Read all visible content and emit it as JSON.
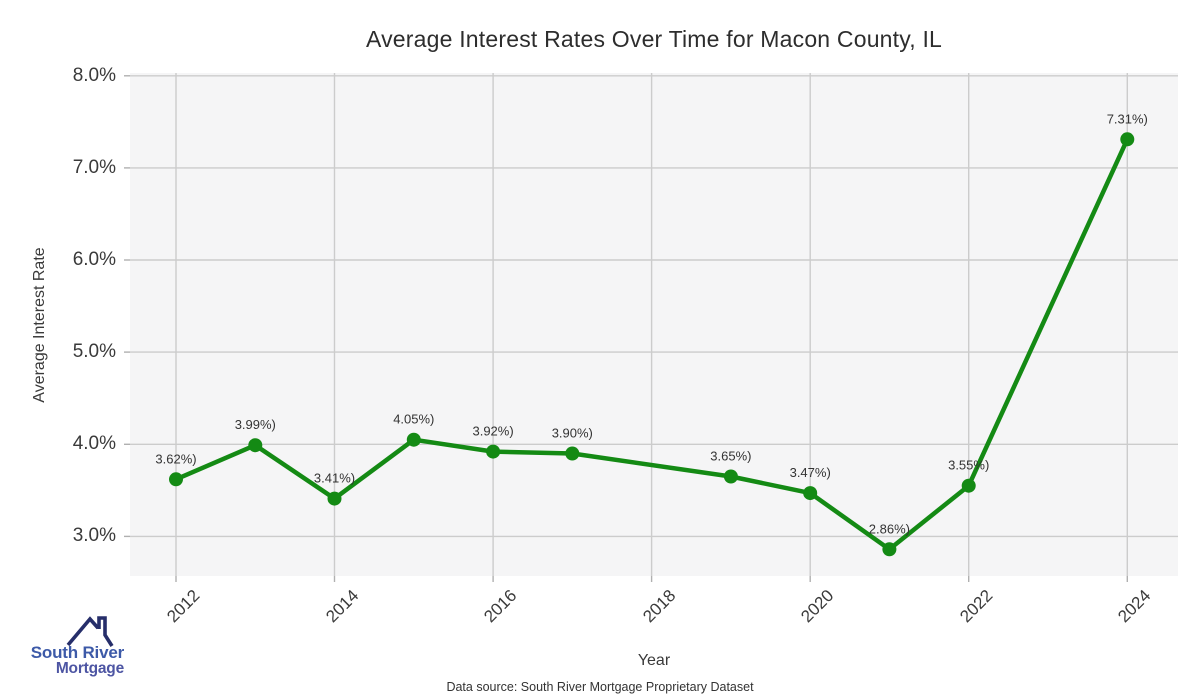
{
  "chart_data": {
    "type": "line",
    "title": "Average Interest Rates Over Time for Macon County, IL",
    "xlabel": "Year",
    "ylabel": "Average Interest Rate",
    "x": [
      2012,
      2013,
      2014,
      2015,
      2016,
      2017,
      2019,
      2020,
      2021,
      2022,
      2024
    ],
    "values": [
      3.62,
      3.99,
      3.41,
      4.05,
      3.92,
      3.9,
      3.65,
      3.47,
      2.86,
      3.55,
      7.31
    ],
    "point_labels": [
      "3.62%)",
      "3.99%)",
      "3.41%)",
      "4.05%)",
      "3.92%)",
      "3.90%)",
      "3.65%)",
      "3.47%)",
      "2.86%)",
      "3.55%)",
      "7.31%)"
    ],
    "xticks": [
      2012,
      2014,
      2016,
      2018,
      2020,
      2022,
      2024
    ],
    "xtick_labels": [
      "2012",
      "2014",
      "2016",
      "2018",
      "2020",
      "2022",
      "2024"
    ],
    "yticks": [
      3,
      4,
      5,
      6,
      7,
      8
    ],
    "ytick_labels": [
      "3.0%",
      "4.0%",
      "5.0%",
      "6.0%",
      "7.0%",
      "8.0%"
    ],
    "xlim": [
      2011.42,
      2024.64
    ],
    "ylim": [
      2.57,
      8.03
    ],
    "grid": true,
    "legend_position": "none",
    "line_color": "#148a14",
    "marker_color": "#148a14",
    "plot_bg_color": "#f5f5f6",
    "gridline_color": "#cccccc",
    "label_color": "#333333"
  },
  "footer": {
    "note": "Data source: South River Mortgage Proprietary Dataset"
  },
  "logo": {
    "line1": "South River",
    "line2": "Mortgage",
    "line1_color": "#3d5aa8",
    "line2_color": "#4d55a3",
    "roof_color": "#262e6a"
  }
}
